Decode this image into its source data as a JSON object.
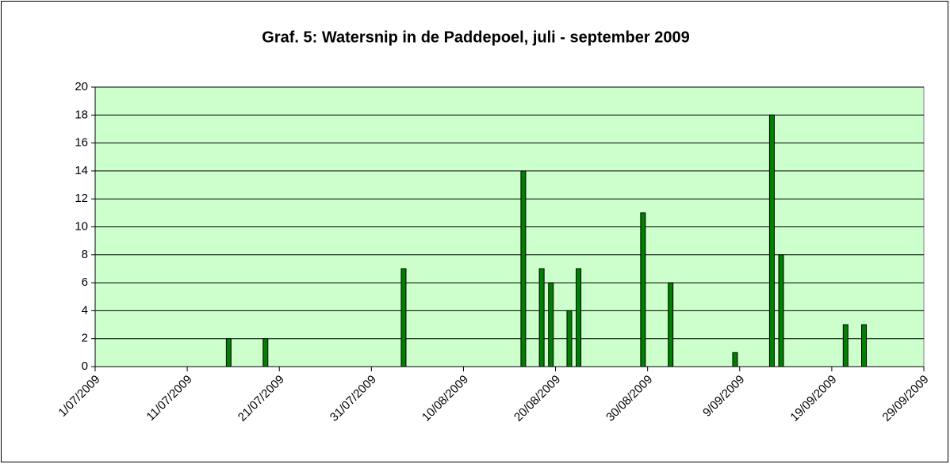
{
  "chart_data": {
    "type": "bar",
    "title": "Graf. 5: Watersnip in de Paddepoel, juli - september 2009",
    "x": [
      "15/07/2009",
      "19/07/2009",
      "3/08/2009",
      "16/08/2009",
      "18/08/2009",
      "19/08/2009",
      "21/08/2009",
      "22/08/2009",
      "29/08/2009",
      "1/09/2009",
      "8/09/2009",
      "12/09/2009",
      "13/09/2009",
      "20/09/2009",
      "22/09/2009"
    ],
    "values": [
      2,
      2,
      7,
      14,
      7,
      6,
      4,
      7,
      11,
      6,
      1,
      18,
      8,
      3,
      3
    ],
    "color": "#008000",
    "xlim": [
      "1/07/2009",
      "29/09/2009"
    ],
    "xticks": [
      "1/07/2009",
      "11/07/2009",
      "21/07/2009",
      "31/07/2009",
      "10/08/2009",
      "20/08/2009",
      "30/08/2009",
      "9/09/2009",
      "19/09/2009",
      "29/09/2009"
    ],
    "ylim": [
      0,
      20
    ],
    "yticks": [
      0,
      2,
      4,
      6,
      8,
      10,
      12,
      14,
      16,
      18,
      20
    ],
    "grid": true
  }
}
